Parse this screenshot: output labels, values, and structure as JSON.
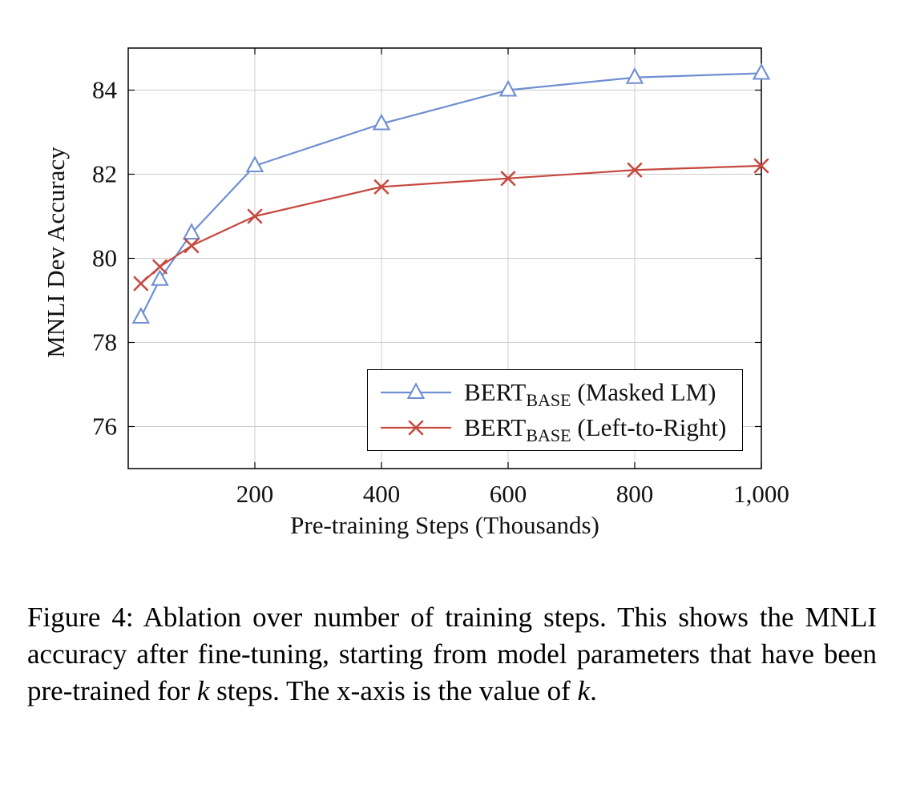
{
  "figure": {
    "caption_segments": [
      {
        "text": "Figure 4: Ablation over number of training steps. This shows the MNLI accuracy after fine-tuning, starting from model parameters that have been pre-trained for ",
        "italic": false
      },
      {
        "text": "k",
        "italic": true
      },
      {
        "text": " steps. The x-axis is the value of ",
        "italic": false
      },
      {
        "text": "k",
        "italic": true
      },
      {
        "text": ".",
        "italic": false
      }
    ]
  },
  "chart_data": {
    "type": "line",
    "title": "",
    "xlabel": "Pre-training Steps (Thousands)",
    "ylabel": "MNLI Dev Accuracy",
    "xlim": [
      0,
      1000
    ],
    "ylim": [
      75,
      85
    ],
    "grid": true,
    "legend_position": "lower right",
    "x_ticks": {
      "values": [
        200,
        400,
        600,
        800,
        1000
      ],
      "labels": [
        "200",
        "400",
        "600",
        "800",
        "1,000"
      ]
    },
    "y_ticks": {
      "values": [
        76,
        78,
        80,
        82,
        84
      ],
      "labels": [
        "76",
        "78",
        "80",
        "82",
        "84"
      ]
    },
    "grid_color": "#cccccc",
    "series": [
      {
        "name_parts": {
          "main": "BERT",
          "sub": "BASE",
          "suffix": " (Masked LM)"
        },
        "color": "#6f8fd2",
        "marker": "triangle",
        "x": [
          20,
          50,
          100,
          200,
          400,
          600,
          800,
          1000
        ],
        "values": [
          78.6,
          79.5,
          80.6,
          82.2,
          83.2,
          84.0,
          84.3,
          84.4
        ]
      },
      {
        "name_parts": {
          "main": "BERT",
          "sub": "BASE",
          "suffix": " (Left-to-Right)"
        },
        "color": "#c5493f",
        "marker": "x",
        "x": [
          20,
          50,
          100,
          200,
          400,
          600,
          800,
          1000
        ],
        "values": [
          79.4,
          79.8,
          80.3,
          81.0,
          81.7,
          81.9,
          82.1,
          82.2
        ]
      }
    ]
  }
}
